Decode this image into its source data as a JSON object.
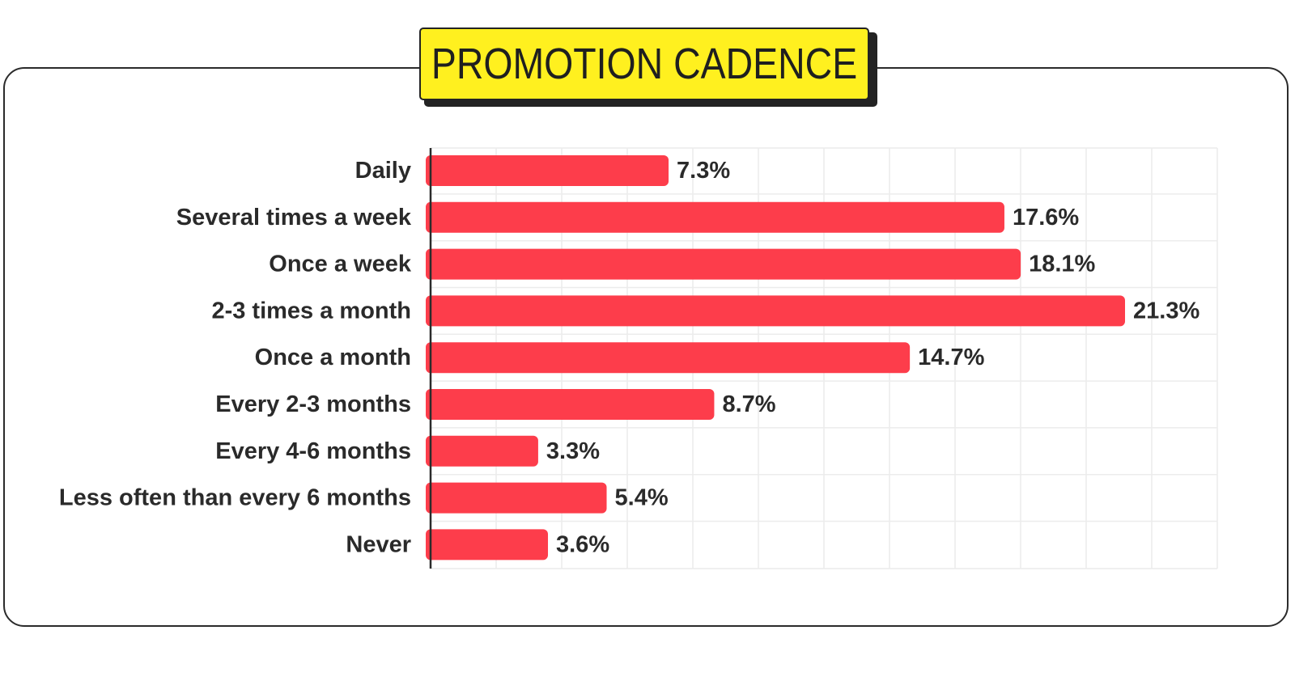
{
  "title": "PROMOTION CADENCE",
  "colors": {
    "bar": "#fd3d4b",
    "title_bg": "#fff01f",
    "text": "#2a2a2a",
    "grid": "#ececec",
    "border": "#2b2b2b"
  },
  "chart_data": {
    "type": "bar",
    "orientation": "horizontal",
    "title": "PROMOTION CADENCE",
    "categories": [
      "Daily",
      "Several times a week",
      "Once a week",
      "2-3 times a month",
      "Once a month",
      "Every 2-3 months",
      "Every 4-6 months",
      "Less often than every 6 months",
      "Never"
    ],
    "values": [
      7.3,
      17.6,
      18.1,
      21.3,
      14.7,
      8.7,
      3.3,
      5.4,
      3.6
    ],
    "value_labels": [
      "7.3%",
      "17.6%",
      "18.1%",
      "21.3%",
      "14.7%",
      "8.7%",
      "3.3%",
      "5.4%",
      "3.6%"
    ],
    "unit": "%",
    "xlim": [
      0,
      24
    ],
    "grid": true,
    "legend": "none"
  }
}
